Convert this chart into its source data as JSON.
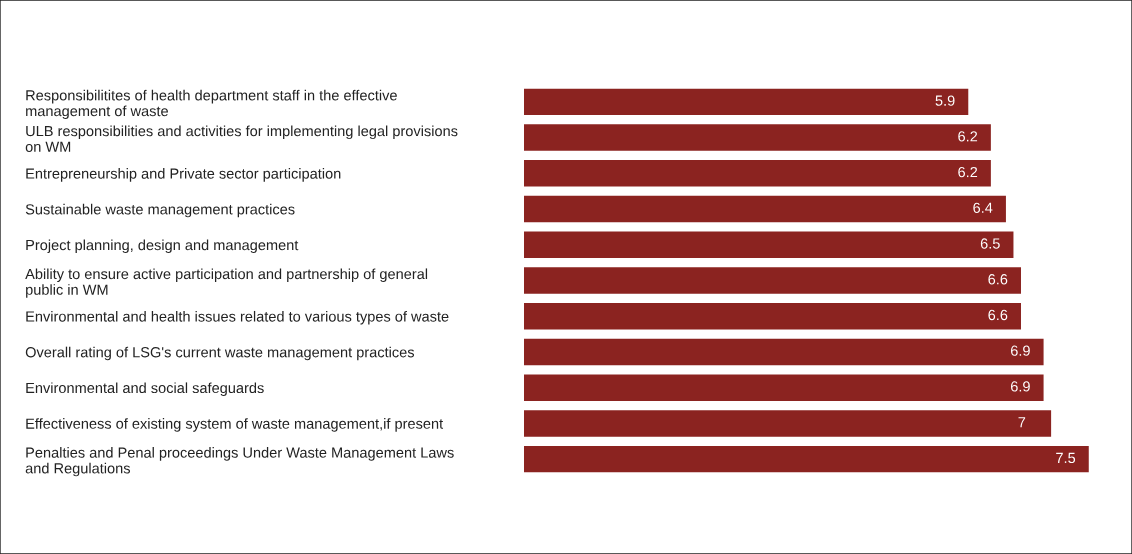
{
  "chart_data": {
    "type": "bar",
    "orientation": "horizontal",
    "data_labels": true,
    "color": "#8b2320",
    "categories": [
      "Responsibilitites of health department staff in the effective\nmanagement of waste",
      "ULB responsibilities and activities for implementing legal provisions\non WM",
      "Entrepreneurship and Private sector participation",
      "Sustainable waste management practices",
      "Project planning, design and management",
      "Ability to ensure active participation and partnership of general\npublic in WM",
      "Environmental and health issues related to various types of waste",
      "Overall rating of LSG's current waste management practices",
      "Environmental and social safeguards",
      "Effectiveness of existing system of waste management,if present",
      "Penalties and Penal proceedings Under Waste Management Laws\nand Regulations"
    ],
    "values": [
      5.9,
      6.2,
      6.2,
      6.4,
      6.5,
      6.6,
      6.6,
      6.9,
      6.9,
      7,
      7.5
    ]
  }
}
